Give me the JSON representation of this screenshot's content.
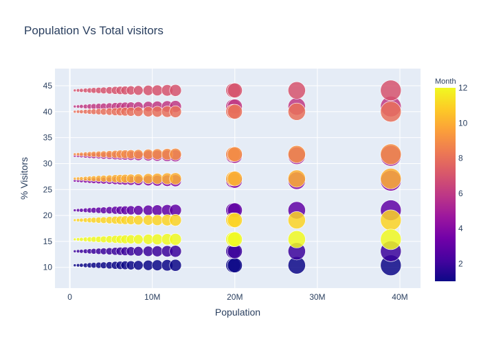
{
  "chart_data": {
    "type": "scatter",
    "title": "Population Vs  Total visitors",
    "xlabel": "Population",
    "ylabel": "% Visitors",
    "xlim": [
      -1800000,
      42500000
    ],
    "ylim": [
      6,
      48.3
    ],
    "x_ticks": [
      {
        "value": 0,
        "label": "0"
      },
      {
        "value": 10000000,
        "label": "10M"
      },
      {
        "value": 20000000,
        "label": "20M"
      },
      {
        "value": 30000000,
        "label": "30M"
      },
      {
        "value": 40000000,
        "label": "40M"
      }
    ],
    "y_ticks": [
      {
        "value": 10,
        "label": "10"
      },
      {
        "value": 15,
        "label": "15"
      },
      {
        "value": 20,
        "label": "20"
      },
      {
        "value": 25,
        "label": "25"
      },
      {
        "value": 30,
        "label": "30"
      },
      {
        "value": 35,
        "label": "35"
      },
      {
        "value": 40,
        "label": "40"
      },
      {
        "value": 45,
        "label": "45"
      }
    ],
    "marker_size_encodes": "Population",
    "color_encodes": "Month",
    "colorbar": {
      "title": "Month",
      "range": [
        1,
        12
      ],
      "ticks": [
        {
          "value": 2,
          "label": "2"
        },
        {
          "value": 4,
          "label": "4"
        },
        {
          "value": 6,
          "label": "6"
        },
        {
          "value": 8,
          "label": "8"
        },
        {
          "value": 10,
          "label": "10"
        },
        {
          "value": 12,
          "label": "12"
        }
      ],
      "colorscale": [
        "#0d0887",
        "#46039f",
        "#7201a8",
        "#9c179e",
        "#bd3786",
        "#d8576b",
        "#ed7953",
        "#fb9f3a",
        "#fdca26",
        "#f0f921"
      ]
    },
    "populations": [
      600000,
      1000000,
      1400000,
      1900000,
      2400000,
      2900000,
      3500000,
      4100000,
      4800000,
      5500000,
      6100000,
      6700000,
      7400000,
      8300000,
      9500000,
      10600000,
      11800000,
      12800000,
      19800000,
      20000000,
      27500000,
      38900000
    ],
    "series": [
      {
        "month": 1,
        "visitors": 10.4
      },
      {
        "month": 2,
        "visitors": 13.1
      },
      {
        "month": 3,
        "visitors": 21.0
      },
      {
        "month": 4,
        "visitors": 26.7
      },
      {
        "month": 5,
        "visitors": 31.5
      },
      {
        "month": 6,
        "visitors": 41.0
      },
      {
        "month": 7,
        "visitors": 44.1
      },
      {
        "month": 8,
        "visitors": 40.0
      },
      {
        "month": 9,
        "visitors": 31.8
      },
      {
        "month": 10,
        "visitors": 27.1
      },
      {
        "month": 11,
        "visitors": 19.1
      },
      {
        "month": 12,
        "visitors": 15.4
      }
    ],
    "background_color": "#e5ecf6",
    "grid": true
  }
}
